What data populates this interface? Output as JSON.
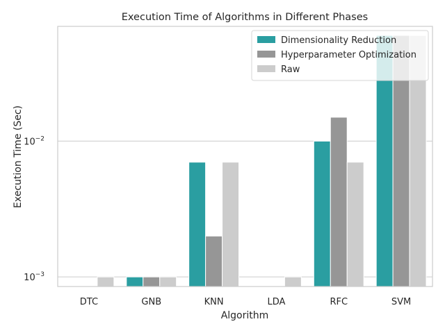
{
  "chart_data": {
    "type": "bar",
    "title": "Execution Time of Algorithms in Different Phases",
    "xlabel": "Algorithm",
    "ylabel": "Execution Time (Sec)",
    "yscale": "log",
    "ylim": [
      0.00085,
      0.07
    ],
    "grid": "y",
    "legend_position": "top-right",
    "categories": [
      "DTC",
      "GNB",
      "KNN",
      "LDA",
      "RFC",
      "SVM"
    ],
    "y_ticks": [
      {
        "value": 0.001,
        "base": "10",
        "exp": "−3"
      },
      {
        "value": 0.01,
        "base": "10",
        "exp": "−2"
      }
    ],
    "series": [
      {
        "name": "Dimensionality Reduction",
        "color": "#2a9ea1",
        "values": [
          0.0008,
          0.001,
          0.007,
          0.0008,
          0.01,
          0.06
        ]
      },
      {
        "name": "Hyperparameter Optimization",
        "color": "#969696",
        "values": [
          0.0008,
          0.001,
          0.002,
          0.0008,
          0.015,
          0.06
        ]
      },
      {
        "name": "Raw",
        "color": "#cccccc",
        "values": [
          0.001,
          0.001,
          0.007,
          0.001,
          0.007,
          0.06
        ]
      }
    ]
  }
}
